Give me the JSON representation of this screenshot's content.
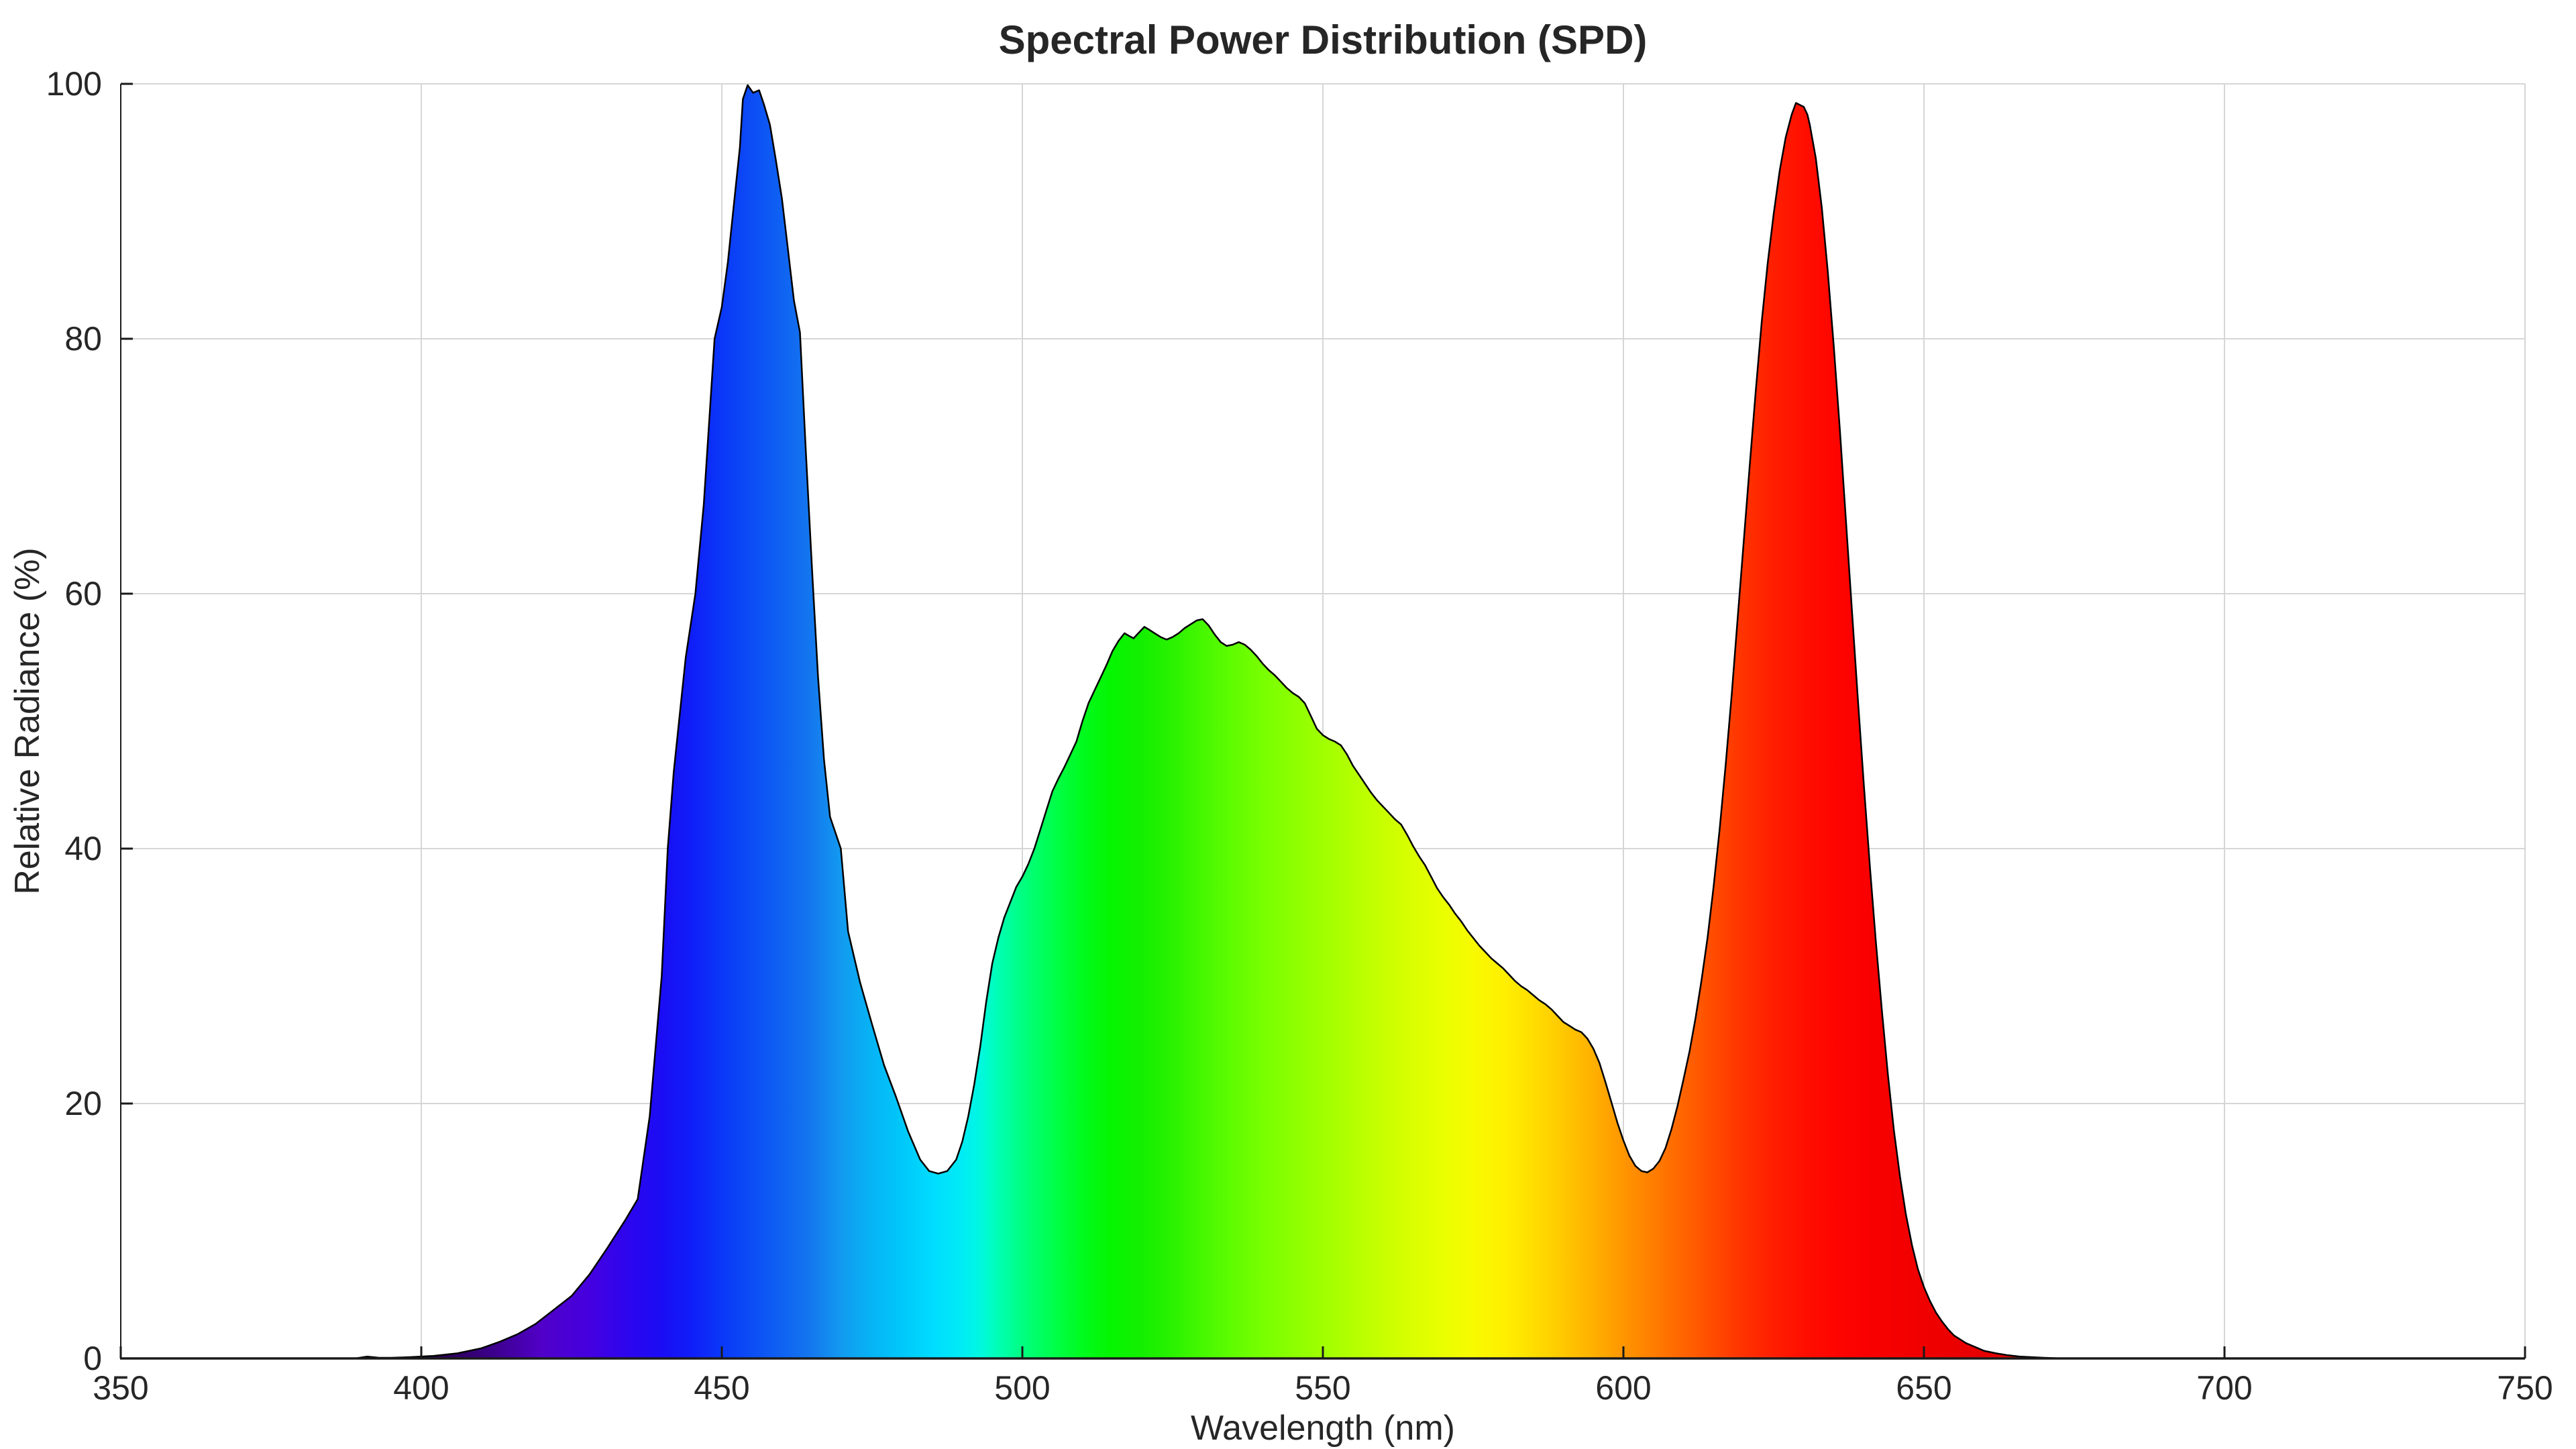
{
  "page": {
    "background": "#ffffff"
  },
  "colors": {
    "grid": "#d6d6d6",
    "axis": "#1a1a1a",
    "tick": "#1a1a1a",
    "curve_stroke": "#000000",
    "text": "#262626"
  },
  "chart_data": {
    "type": "area",
    "title": "Spectral Power Distribution (SPD)",
    "xlabel": "Wavelength (nm)",
    "ylabel": "Relative Radiance (%)",
    "xlim": [
      350,
      750
    ],
    "ylim": [
      0,
      100
    ],
    "x_ticks": [
      350,
      400,
      450,
      500,
      550,
      600,
      650,
      700,
      750
    ],
    "y_ticks": [
      0,
      20,
      40,
      60,
      80,
      100
    ],
    "grid": true,
    "legend": "none",
    "fill_style": "visible-spectrum gradient mapped to wavelength along x",
    "peaks": [
      {
        "name": "blue",
        "nm": 455,
        "pct": 100
      },
      {
        "name": "green",
        "nm": 530,
        "pct": 58
      },
      {
        "name": "red",
        "nm": 629,
        "pct": 98.5
      }
    ],
    "valleys": [
      {
        "nm": 485,
        "pct": 14.5
      },
      {
        "nm": 603,
        "pct": 14.6
      }
    ],
    "points": [
      [
        350,
        0
      ],
      [
        380,
        0
      ],
      [
        389,
        0
      ],
      [
        391,
        0.15
      ],
      [
        393,
        0.05
      ],
      [
        395,
        0.05
      ],
      [
        398,
        0.1
      ],
      [
        402,
        0.2
      ],
      [
        406,
        0.4
      ],
      [
        410,
        0.8
      ],
      [
        413,
        1.3
      ],
      [
        416,
        1.9
      ],
      [
        419,
        2.7
      ],
      [
        422,
        3.8
      ],
      [
        425,
        4.9
      ],
      [
        428,
        6.6
      ],
      [
        431,
        8.7
      ],
      [
        434,
        10.9
      ],
      [
        436,
        12.5
      ],
      [
        438,
        19
      ],
      [
        440,
        30
      ],
      [
        441,
        40
      ],
      [
        442,
        46
      ],
      [
        444,
        55
      ],
      [
        445.6,
        60
      ],
      [
        447,
        67
      ],
      [
        448.8,
        80
      ],
      [
        450,
        82.5
      ],
      [
        451,
        86
      ],
      [
        452,
        90.5
      ],
      [
        453,
        95
      ],
      [
        453.5,
        98.8
      ],
      [
        454.3,
        99.9
      ],
      [
        455.2,
        99.3
      ],
      [
        456.2,
        99.5
      ],
      [
        457,
        98.4
      ],
      [
        458,
        96.8
      ],
      [
        459,
        94
      ],
      [
        460,
        91
      ],
      [
        461,
        87
      ],
      [
        462,
        83
      ],
      [
        463,
        80.5
      ],
      [
        464,
        71
      ],
      [
        465,
        62
      ],
      [
        466,
        53.5
      ],
      [
        467,
        47
      ],
      [
        468,
        42.5
      ],
      [
        469.8,
        40
      ],
      [
        471,
        33.5
      ],
      [
        473,
        29.5
      ],
      [
        475,
        26.2
      ],
      [
        477,
        23
      ],
      [
        479,
        20.5
      ],
      [
        481,
        17.8
      ],
      [
        483,
        15.6
      ],
      [
        484.5,
        14.7
      ],
      [
        486,
        14.5
      ],
      [
        487.5,
        14.7
      ],
      [
        489,
        15.6
      ],
      [
        490,
        17
      ],
      [
        491,
        19
      ],
      [
        492,
        21.5
      ],
      [
        493,
        24.5
      ],
      [
        494,
        28
      ],
      [
        495,
        31
      ],
      [
        496,
        33
      ],
      [
        497,
        34.6
      ],
      [
        498,
        35.8
      ],
      [
        499,
        37
      ],
      [
        500,
        37.8
      ],
      [
        501,
        38.8
      ],
      [
        502,
        40
      ],
      [
        503,
        41.5
      ],
      [
        504,
        43
      ],
      [
        505,
        44.5
      ],
      [
        506,
        45.5
      ],
      [
        507,
        46.4
      ],
      [
        508,
        47.4
      ],
      [
        509,
        48.4
      ],
      [
        510,
        50
      ],
      [
        511,
        51.4
      ],
      [
        512,
        52.4
      ],
      [
        513,
        53.4
      ],
      [
        514,
        54.4
      ],
      [
        515,
        55.5
      ],
      [
        516,
        56.3
      ],
      [
        517,
        56.9
      ],
      [
        517.7,
        56.7
      ],
      [
        518.5,
        56.5
      ],
      [
        519.5,
        57
      ],
      [
        520.3,
        57.4
      ],
      [
        521,
        57.2
      ],
      [
        522,
        56.9
      ],
      [
        523,
        56.6
      ],
      [
        524,
        56.4
      ],
      [
        525,
        56.6
      ],
      [
        526,
        56.9
      ],
      [
        527,
        57.3
      ],
      [
        528,
        57.6
      ],
      [
        529,
        57.9
      ],
      [
        530,
        58
      ],
      [
        531,
        57.5
      ],
      [
        532,
        56.8
      ],
      [
        533,
        56.2
      ],
      [
        534,
        55.9
      ],
      [
        535,
        56
      ],
      [
        536,
        56.2
      ],
      [
        537,
        56
      ],
      [
        538,
        55.6
      ],
      [
        539,
        55.1
      ],
      [
        540,
        54.5
      ],
      [
        541,
        54
      ],
      [
        542,
        53.6
      ],
      [
        543,
        53.1
      ],
      [
        544,
        52.6
      ],
      [
        545,
        52.2
      ],
      [
        546,
        51.9
      ],
      [
        547,
        51.4
      ],
      [
        548,
        50.4
      ],
      [
        549,
        49.4
      ],
      [
        550,
        48.9
      ],
      [
        551,
        48.6
      ],
      [
        552,
        48.4
      ],
      [
        553,
        48.1
      ],
      [
        554,
        47.4
      ],
      [
        555,
        46.5
      ],
      [
        556,
        45.8
      ],
      [
        557,
        45.1
      ],
      [
        558,
        44.4
      ],
      [
        559,
        43.8
      ],
      [
        560,
        43.3
      ],
      [
        561,
        42.8
      ],
      [
        562,
        42.3
      ],
      [
        563,
        41.9
      ],
      [
        564,
        41.1
      ],
      [
        565,
        40.2
      ],
      [
        566,
        39.4
      ],
      [
        567,
        38.7
      ],
      [
        568,
        37.8
      ],
      [
        569,
        36.9
      ],
      [
        570,
        36.2
      ],
      [
        571,
        35.6
      ],
      [
        572,
        34.9
      ],
      [
        573,
        34.3
      ],
      [
        574,
        33.6
      ],
      [
        575,
        33
      ],
      [
        576,
        32.4
      ],
      [
        577,
        31.9
      ],
      [
        578,
        31.4
      ],
      [
        579,
        31
      ],
      [
        580,
        30.6
      ],
      [
        581,
        30.1
      ],
      [
        582,
        29.6
      ],
      [
        583,
        29.2
      ],
      [
        584,
        28.9
      ],
      [
        585,
        28.5
      ],
      [
        586,
        28.1
      ],
      [
        587,
        27.8
      ],
      [
        588,
        27.4
      ],
      [
        589,
        26.9
      ],
      [
        590,
        26.4
      ],
      [
        591,
        26.1
      ],
      [
        592,
        25.8
      ],
      [
        593,
        25.6
      ],
      [
        594,
        25.1
      ],
      [
        595,
        24.3
      ],
      [
        596,
        23.2
      ],
      [
        597,
        21.7
      ],
      [
        598,
        20.1
      ],
      [
        599,
        18.5
      ],
      [
        600,
        17.1
      ],
      [
        601,
        15.9
      ],
      [
        602,
        15.1
      ],
      [
        603,
        14.7
      ],
      [
        604,
        14.6
      ],
      [
        605,
        14.9
      ],
      [
        606,
        15.5
      ],
      [
        607,
        16.5
      ],
      [
        608,
        18
      ],
      [
        609,
        19.8
      ],
      [
        610,
        21.9
      ],
      [
        611,
        24.1
      ],
      [
        612,
        26.7
      ],
      [
        613,
        29.7
      ],
      [
        614,
        33
      ],
      [
        615,
        37
      ],
      [
        616,
        41.5
      ],
      [
        617,
        46.5
      ],
      [
        618,
        52
      ],
      [
        619,
        58
      ],
      [
        620,
        64
      ],
      [
        621,
        70
      ],
      [
        622,
        75.8
      ],
      [
        623,
        81.3
      ],
      [
        624,
        85.9
      ],
      [
        625,
        89.8
      ],
      [
        626,
        93.2
      ],
      [
        627,
        95.8
      ],
      [
        628,
        97.6
      ],
      [
        628.7,
        98.5
      ],
      [
        630,
        98.2
      ],
      [
        630.6,
        97.6
      ],
      [
        631,
        96.8
      ],
      [
        632,
        94.2
      ],
      [
        633,
        90.3
      ],
      [
        634,
        85.3
      ],
      [
        635,
        79.4
      ],
      [
        636,
        72.9
      ],
      [
        637,
        65.9
      ],
      [
        638,
        58.8
      ],
      [
        639,
        51.8
      ],
      [
        640,
        45
      ],
      [
        641,
        38.6
      ],
      [
        642,
        32.7
      ],
      [
        643,
        27.3
      ],
      [
        644,
        22.3
      ],
      [
        645,
        17.9
      ],
      [
        646,
        14.3
      ],
      [
        647,
        11.3
      ],
      [
        648,
        8.9
      ],
      [
        649,
        7
      ],
      [
        650,
        5.6
      ],
      [
        651,
        4.5
      ],
      [
        652,
        3.6
      ],
      [
        653,
        2.9
      ],
      [
        654,
        2.3
      ],
      [
        655,
        1.8
      ],
      [
        656,
        1.5
      ],
      [
        657,
        1.2
      ],
      [
        658,
        1
      ],
      [
        659,
        0.8
      ],
      [
        660,
        0.6
      ],
      [
        662,
        0.4
      ],
      [
        664,
        0.25
      ],
      [
        666,
        0.15
      ],
      [
        668,
        0.1
      ],
      [
        670,
        0.05
      ],
      [
        673,
        0
      ],
      [
        680,
        0
      ],
      [
        700,
        0
      ],
      [
        750,
        0
      ]
    ],
    "spectrum_stops": [
      {
        "nm": 395,
        "color": "#1c0038"
      },
      {
        "nm": 405,
        "color": "#2e005e"
      },
      {
        "nm": 412,
        "color": "#3c008c"
      },
      {
        "nm": 420,
        "color": "#5000c8"
      },
      {
        "nm": 428,
        "color": "#4500e0"
      },
      {
        "nm": 435,
        "color": "#2a06ef"
      },
      {
        "nm": 440,
        "color": "#1a0df5"
      },
      {
        "nm": 445,
        "color": "#0f1ef8"
      },
      {
        "nm": 450,
        "color": "#0a38f8"
      },
      {
        "nm": 455,
        "color": "#0c4df5"
      },
      {
        "nm": 460,
        "color": "#0f62f2"
      },
      {
        "nm": 465,
        "color": "#1478ee"
      },
      {
        "nm": 470,
        "color": "#129bf0"
      },
      {
        "nm": 475,
        "color": "#06b4f5"
      },
      {
        "nm": 480,
        "color": "#00c8fa"
      },
      {
        "nm": 485,
        "color": "#00dcff"
      },
      {
        "nm": 490,
        "color": "#00ecf5"
      },
      {
        "nm": 493,
        "color": "#00f8e0"
      },
      {
        "nm": 496,
        "color": "#00ffb4"
      },
      {
        "nm": 500,
        "color": "#00ff80"
      },
      {
        "nm": 505,
        "color": "#00ff4d"
      },
      {
        "nm": 510,
        "color": "#00fb1e"
      },
      {
        "nm": 515,
        "color": "#06f500"
      },
      {
        "nm": 520,
        "color": "#14ef00"
      },
      {
        "nm": 525,
        "color": "#2af200"
      },
      {
        "nm": 530,
        "color": "#46f800"
      },
      {
        "nm": 535,
        "color": "#60fc00"
      },
      {
        "nm": 540,
        "color": "#78ff00"
      },
      {
        "nm": 545,
        "color": "#8cff00"
      },
      {
        "nm": 550,
        "color": "#a0ff00"
      },
      {
        "nm": 555,
        "color": "#b4ff00"
      },
      {
        "nm": 560,
        "color": "#c8ff00"
      },
      {
        "nm": 565,
        "color": "#daff00"
      },
      {
        "nm": 570,
        "color": "#eaff00"
      },
      {
        "nm": 575,
        "color": "#f8fa00"
      },
      {
        "nm": 580,
        "color": "#fff000"
      },
      {
        "nm": 585,
        "color": "#ffde00"
      },
      {
        "nm": 590,
        "color": "#ffc800"
      },
      {
        "nm": 595,
        "color": "#ffb000"
      },
      {
        "nm": 600,
        "color": "#ff9600"
      },
      {
        "nm": 605,
        "color": "#ff7d00"
      },
      {
        "nm": 610,
        "color": "#ff6400"
      },
      {
        "nm": 615,
        "color": "#ff4b00"
      },
      {
        "nm": 620,
        "color": "#ff3200"
      },
      {
        "nm": 625,
        "color": "#ff1e00"
      },
      {
        "nm": 630,
        "color": "#ff0f00"
      },
      {
        "nm": 635,
        "color": "#ff0500"
      },
      {
        "nm": 640,
        "color": "#fa0000"
      },
      {
        "nm": 650,
        "color": "#f00000"
      },
      {
        "nm": 660,
        "color": "#e60000"
      },
      {
        "nm": 675,
        "color": "#dc0000"
      }
    ]
  }
}
